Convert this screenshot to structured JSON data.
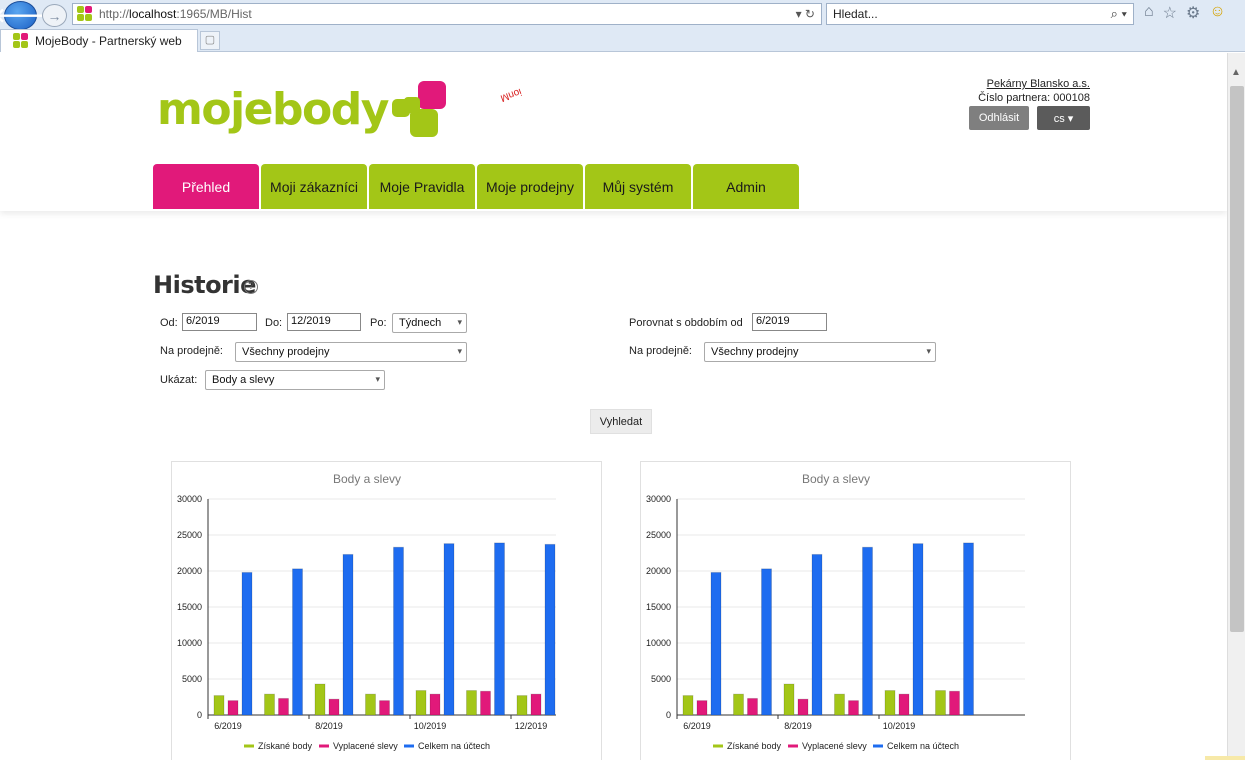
{
  "browser": {
    "url_prefix": "http://",
    "url_host": "localhost",
    "url_rest": ":1965/MB/Hist",
    "url_tools": "▾ ↻",
    "search_placeholder": "Hledat...",
    "search_tools": "⌕ ▾",
    "tab_title": "MojeBody - Partnerský web",
    "icons": [
      "back-arrow-icon",
      "forward-arrow-icon",
      "home-icon",
      "star-icon",
      "gear-icon",
      "smiley-icon"
    ]
  },
  "header": {
    "logo_text": "mojebody",
    "stamp_text": "ionМ",
    "partner_name": "Pekárny Blansko a.s.",
    "partner_number": "Číslo partnera: 000108",
    "logout_label": "Odhlásit",
    "lang_label": "cs ▾"
  },
  "menu": [
    {
      "label": "Přehled",
      "active": true
    },
    {
      "label": "Moji zákazníci",
      "active": false
    },
    {
      "label": "Moje Pravidla",
      "active": false
    },
    {
      "label": "Moje prodejny",
      "active": false
    },
    {
      "label": "Můj systém",
      "active": false
    },
    {
      "label": "Admin",
      "active": false
    }
  ],
  "page": {
    "title": "Historie",
    "help_icon": "?",
    "filters": {
      "od_label": "Od:",
      "od_value": "6/2019",
      "do_label": "Do:",
      "do_value": "12/2019",
      "po_label": "Po:",
      "po_value": "Týdnech",
      "store_label": "Na prodejně:",
      "store_value": "Všechny prodejny",
      "show_label": "Ukázat:",
      "show_value": "Body a slevy",
      "compare_label": "Porovnat s obdobím od",
      "compare_value": "6/2019",
      "compare_store_label": "Na prodejně:",
      "compare_store_value": "Všechny prodejny"
    },
    "search_button": "Vyhledat"
  },
  "colors": {
    "green": "#a3c617",
    "pink": "#e1197a",
    "blue": "#1e6cf0"
  },
  "chart_data": [
    {
      "type": "bar",
      "title": "Body a slevy",
      "categories": [
        "6/2019",
        "7/2019",
        "8/2019",
        "9/2019",
        "10/2019",
        "11/2019",
        "12/2019"
      ],
      "xtick_labels": [
        "6/2019",
        "",
        "8/2019",
        "",
        "10/2019",
        "",
        "12/2019"
      ],
      "series": [
        {
          "name": "Získané body",
          "values": [
            2700,
            2900,
            4300,
            2900,
            3400,
            3400,
            2700
          ]
        },
        {
          "name": "Vyplacené slevy",
          "values": [
            2000,
            2300,
            2200,
            2000,
            2900,
            3300,
            2900
          ]
        },
        {
          "name": "Celkem na účtech",
          "values": [
            19800,
            20300,
            22300,
            23300,
            23800,
            23900,
            23700
          ]
        }
      ],
      "yticks": [
        "0",
        "5000",
        "10000",
        "15000",
        "20000",
        "25000",
        "30000"
      ],
      "ylim": [
        0,
        30000
      ],
      "legend": "bottom",
      "grid": true
    },
    {
      "type": "bar",
      "title": "Body a slevy",
      "categories": [
        "6/2019",
        "7/2019",
        "8/2019",
        "9/2019",
        "10/2019",
        "11/2019"
      ],
      "xtick_labels": [
        "6/2019",
        "",
        "8/2019",
        "",
        "10/2019",
        ""
      ],
      "series": [
        {
          "name": "Získané body",
          "values": [
            2700,
            2900,
            4300,
            2900,
            3400,
            3400
          ]
        },
        {
          "name": "Vyplacené slevy",
          "values": [
            2000,
            2300,
            2200,
            2000,
            2900,
            3300
          ]
        },
        {
          "name": "Celkem na účtech",
          "values": [
            19800,
            20300,
            22300,
            23300,
            23800,
            23900
          ]
        }
      ],
      "yticks": [
        "0",
        "5000",
        "10000",
        "15000",
        "20000",
        "25000",
        "30000"
      ],
      "ylim": [
        0,
        30000
      ],
      "legend": "bottom",
      "grid": true
    }
  ]
}
